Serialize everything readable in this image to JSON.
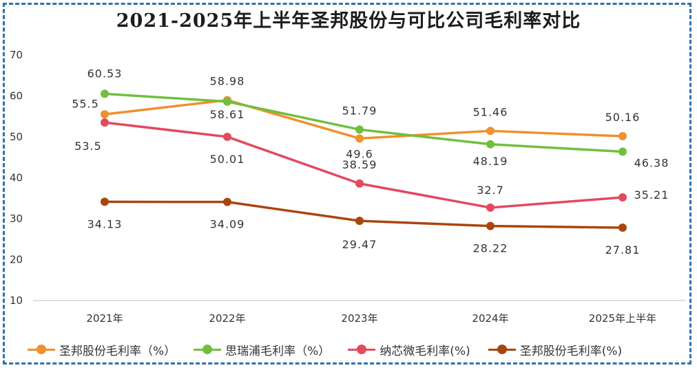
{
  "chart_data": {
    "type": "line",
    "title": "2021-2025年上半年圣邦股份与可比公司毛利率对比",
    "categories": [
      "2021年",
      "2022年",
      "2023年",
      "2024年",
      "2025年上半年"
    ],
    "ylim": [
      10,
      70
    ],
    "yticks": [
      10,
      20,
      30,
      40,
      50,
      60,
      70
    ],
    "grid": false,
    "legend_position": "bottom",
    "series": [
      {
        "name": "圣邦股份毛利率（%）",
        "color": "#f0902e",
        "values": [
          55.5,
          58.98,
          49.6,
          51.46,
          50.16
        ],
        "labels": [
          "55.5",
          "58.98",
          "49.6",
          "51.46",
          "50.16"
        ]
      },
      {
        "name": "思瑞浦毛利率（%）",
        "color": "#72bf3f",
        "values": [
          60.53,
          58.61,
          51.79,
          48.19,
          46.38
        ],
        "labels": [
          "60.53",
          "58.61",
          "51.79",
          "48.19",
          "46.38"
        ]
      },
      {
        "name": "纳芯微毛利率(%)",
        "color": "#e24a5e",
        "values": [
          53.5,
          50.01,
          38.59,
          32.7,
          35.21
        ],
        "labels": [
          "53.5",
          "50.01",
          "38.59",
          "32.7",
          "35.21"
        ]
      },
      {
        "name": "圣邦股份毛利率(%)",
        "color": "#a8460e",
        "values": [
          34.13,
          34.09,
          29.47,
          28.22,
          27.81
        ],
        "labels": [
          "34.13",
          "34.09",
          "29.47",
          "28.22",
          "27.81"
        ]
      }
    ]
  }
}
